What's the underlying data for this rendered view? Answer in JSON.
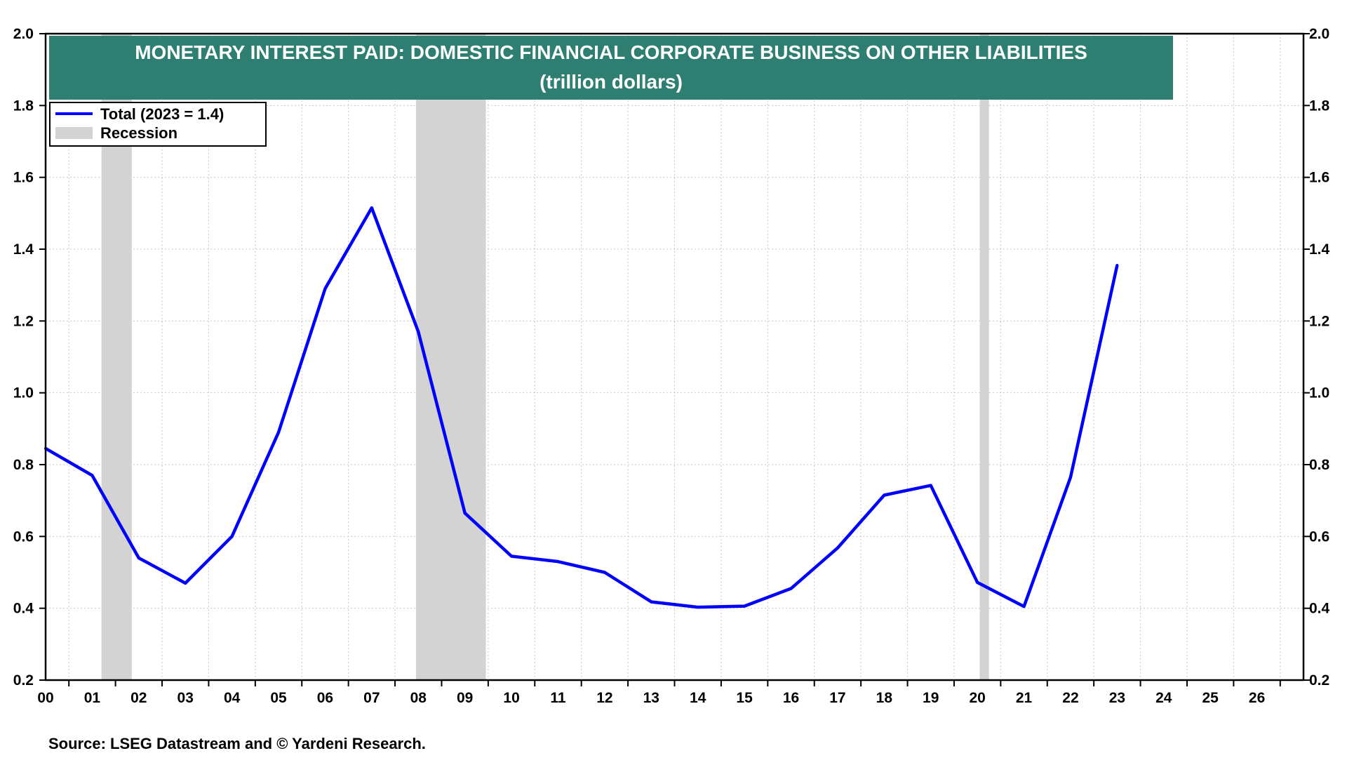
{
  "chart_data": {
    "type": "line",
    "title": "MONETARY INTEREST PAID: DOMESTIC FINANCIAL CORPORATE BUSINESS ON OTHER LIABILITIES",
    "subtitle": "(trillion dollars)",
    "x_tick_labels": [
      "00",
      "01",
      "02",
      "03",
      "04",
      "05",
      "06",
      "07",
      "08",
      "09",
      "10",
      "11",
      "12",
      "13",
      "14",
      "15",
      "16",
      "17",
      "18",
      "19",
      "20",
      "21",
      "22",
      "23",
      "24",
      "25",
      "26"
    ],
    "xlim": [
      2000,
      2027
    ],
    "ylim": [
      0.2,
      2.0
    ],
    "y_ticks": [
      "0.2",
      "0.4",
      "0.6",
      "0.8",
      "1.0",
      "1.2",
      "1.4",
      "1.6",
      "1.8",
      "2.0"
    ],
    "grid": true,
    "legend_position": "top-left",
    "series": [
      {
        "name": "Total (2023 = 1.4)",
        "color": "#0000ff",
        "x": [
          2000,
          2001,
          2002,
          2003,
          2004,
          2005,
          2006,
          2007,
          2008,
          2009,
          2010,
          2011,
          2012,
          2013,
          2014,
          2015,
          2016,
          2017,
          2018,
          2019,
          2020,
          2021,
          2022,
          2023
        ],
        "values": [
          0.845,
          0.77,
          0.54,
          0.47,
          0.6,
          0.89,
          1.29,
          1.515,
          1.17,
          0.665,
          0.545,
          0.53,
          0.5,
          0.418,
          0.403,
          0.406,
          0.455,
          0.568,
          0.715,
          0.742,
          0.472,
          0.405,
          0.765,
          1.355
        ]
      }
    ],
    "recessions": [
      {
        "start": 2001.2,
        "end": 2001.85
      },
      {
        "start": 2007.95,
        "end": 2009.45
      },
      {
        "start": 2020.05,
        "end": 2020.25
      }
    ],
    "recession_label": "Recession",
    "recession_color": "#d3d3d3",
    "title_bg_color": "#2e7f72",
    "source": "Source: LSEG Datastream and © Yardeni Research."
  }
}
